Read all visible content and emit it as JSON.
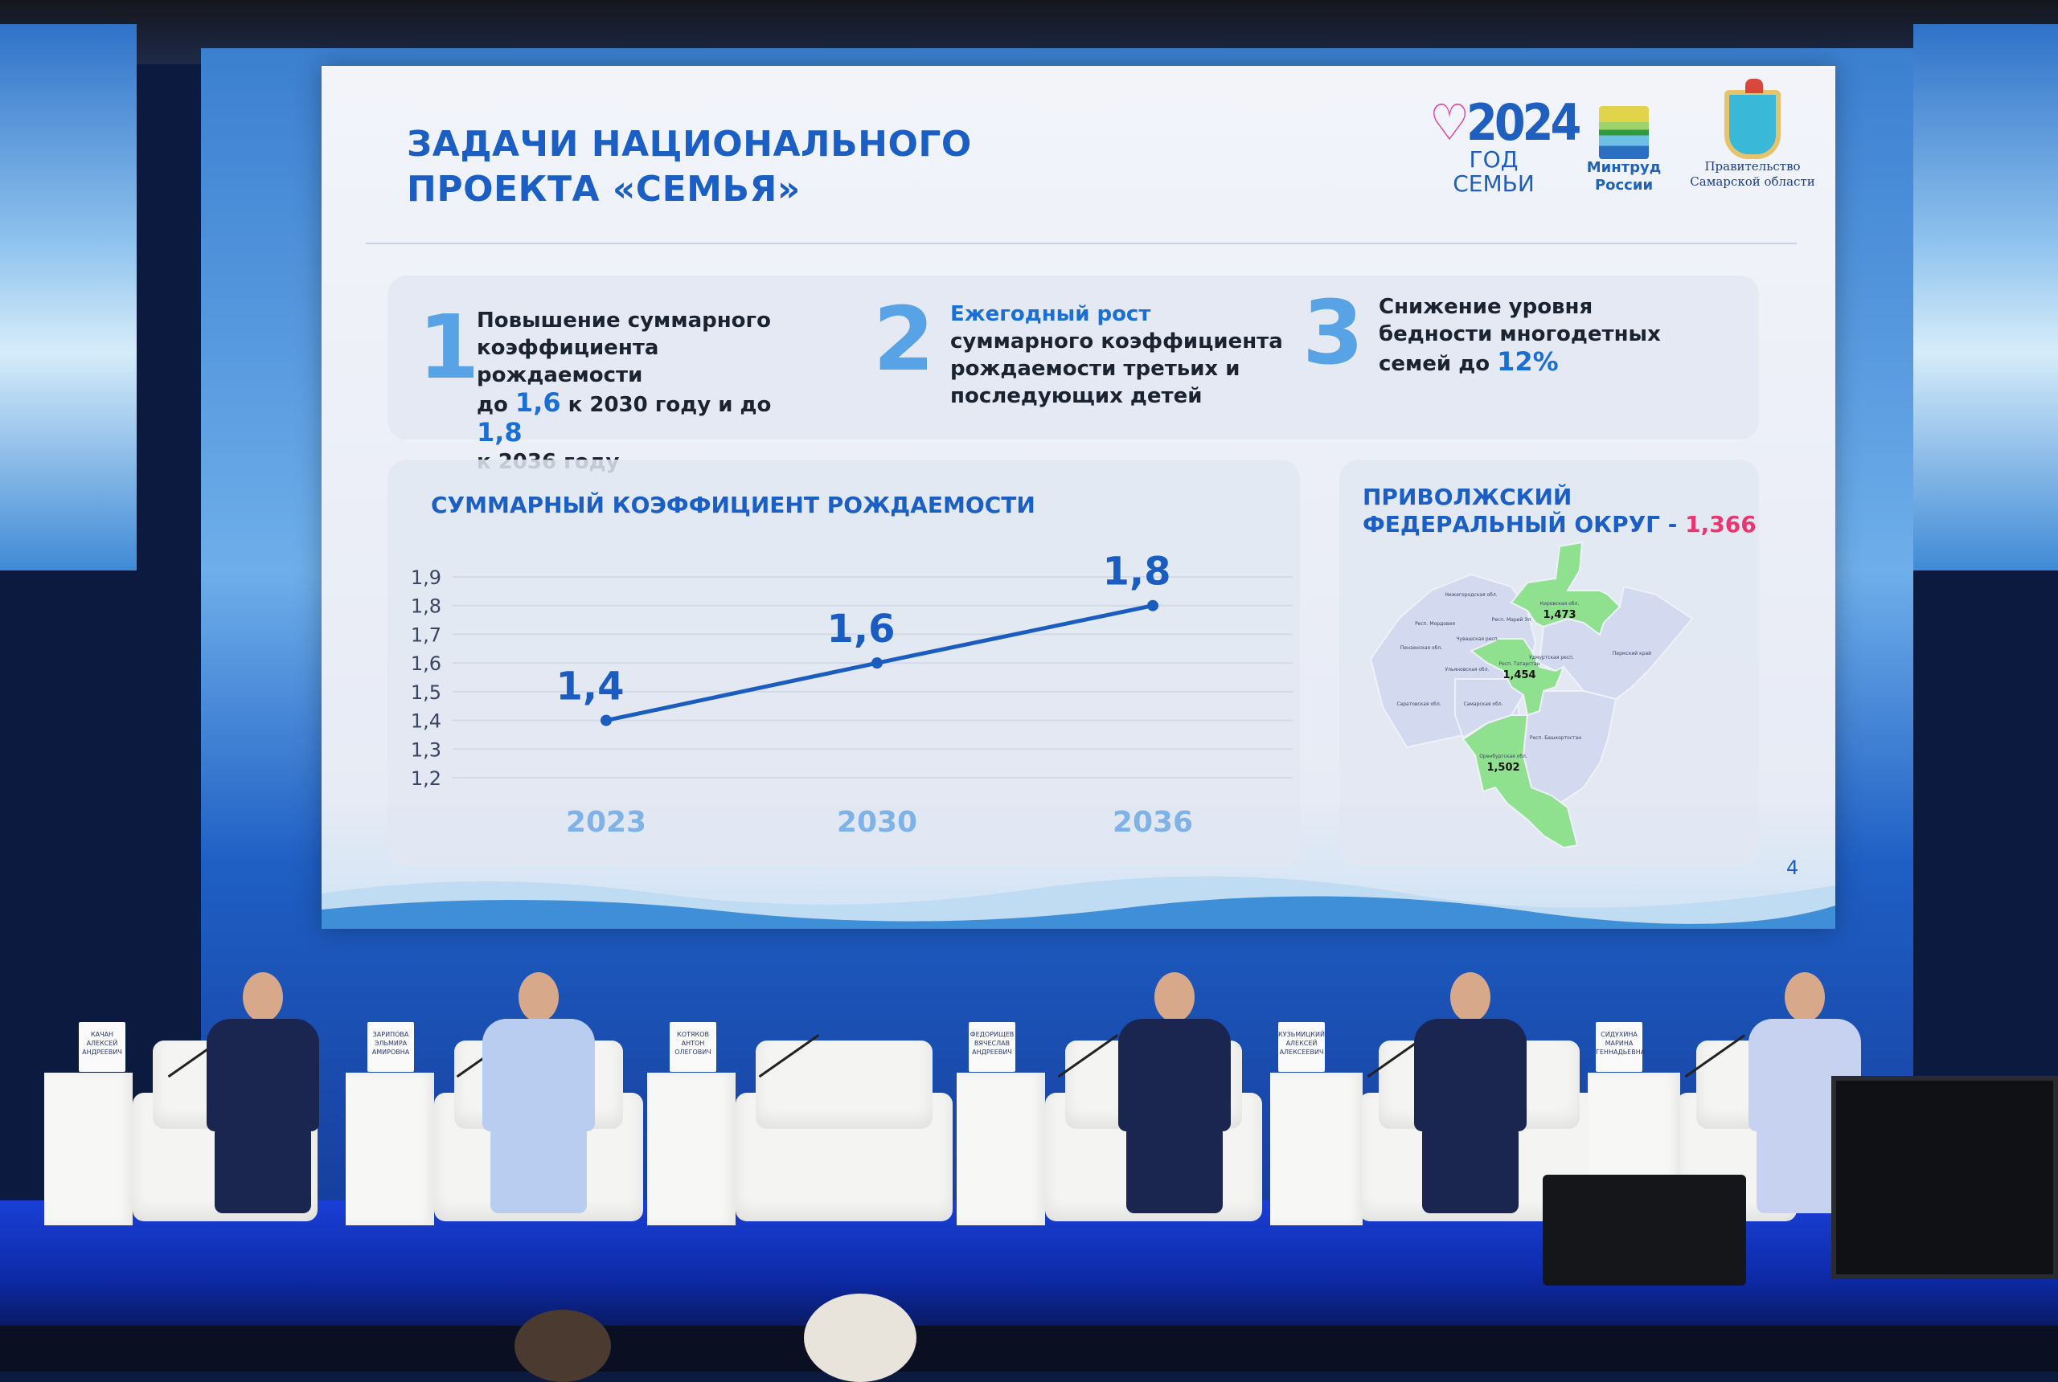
{
  "slide": {
    "title_line1": "ЗАДАЧИ НАЦИОНАЛЬНОГО",
    "title_line2": "ПРОЕКТА «СЕМЬЯ»",
    "logos": {
      "year_logo": {
        "number": "2024",
        "caption": "ГОД СЕМЬИ"
      },
      "mintrud": {
        "line1": "Минтруд",
        "line2": "России"
      },
      "samara": {
        "line1": "Правительство",
        "line2": "Самарской области"
      }
    },
    "tasks": [
      {
        "number": "1",
        "parts": [
          "Повышение суммарного",
          "коэффициента рождаемости",
          "до ",
          "1,6",
          " к 2030 году и до ",
          "1,8",
          "к 2036 году"
        ]
      },
      {
        "number": "2",
        "lead": "Ежегодный рост",
        "lines": [
          "суммарного коэффициента",
          "рождаемости третьих и",
          "последующих детей"
        ]
      },
      {
        "number": "3",
        "lines": [
          "Снижение уровня",
          "бедности многодетных"
        ],
        "last_prefix": "семей до ",
        "value": "12%"
      }
    ],
    "map": {
      "title_line1": "ПРИВОЛЖСКИЙ",
      "title_line2": "ФЕДЕРАЛЬНЫЙ ОКРУГ - ",
      "title_value": "1,366",
      "regions": [
        {
          "name": "Нижегородская обл."
        },
        {
          "name": "Респ. Мордовия"
        },
        {
          "name": "Респ. Марий Эл"
        },
        {
          "name": "Чувашская респ."
        },
        {
          "name": "Пензенская обл."
        },
        {
          "name": "Ульяновская обл."
        },
        {
          "name": "Удмуртская респ."
        },
        {
          "name": "Пермский край"
        },
        {
          "name": "Саратовская обл."
        },
        {
          "name": "Самарская обл."
        },
        {
          "name": "Респ. Башкортостан"
        },
        {
          "name": "Кировская обл.",
          "value": "1,473",
          "highlight": true
        },
        {
          "name": "Респ. Татарстан",
          "value": "1,454",
          "highlight": true
        },
        {
          "name": "Оренбургская обл.",
          "value": "1,502",
          "highlight": true
        }
      ],
      "highlight_color": "#8fe08f",
      "base_color": "#d3d9ee"
    },
    "page_number": "4"
  },
  "chart_data": {
    "type": "line",
    "title": "СУММАРНЫЙ КОЭФФИЦИЕНТ РОЖДАЕМОСТИ",
    "categories": [
      "2023",
      "2030",
      "2036"
    ],
    "values": [
      1.4,
      1.6,
      1.8
    ],
    "data_labels": [
      "1,4",
      "1,6",
      "1,8"
    ],
    "ytick_labels": [
      "1,9",
      "1,8",
      "1,7",
      "1,6",
      "1,5",
      "1,4",
      "1,3",
      "1,2"
    ],
    "yticks": [
      1.9,
      1.8,
      1.7,
      1.6,
      1.5,
      1.4,
      1.3,
      1.2
    ],
    "ylim": [
      1.2,
      1.9
    ],
    "grid": true,
    "line_color": "#1a5cc0"
  },
  "stage": {
    "nameplates": [
      {
        "lines": [
          "КАЧАН",
          "АЛЕКСЕЙ",
          "АНДРЕЕВИЧ"
        ]
      },
      {
        "lines": [
          "ЗАРИПОВА",
          "ЭЛЬМИРА",
          "АМИРОВНА"
        ]
      },
      {
        "lines": [
          "КОТЯКОВ",
          "АНТОН",
          "ОЛЕГОВИЧ"
        ]
      },
      {
        "lines": [
          "ФЕДОРИЩЕВ",
          "ВЯЧЕСЛАВ",
          "АНДРЕЕВИЧ"
        ]
      },
      {
        "lines": [
          "КУЗЬМИЦКИЙ",
          "АЛЕКСЕЙ",
          "АЛЕКСЕЕВИЧ"
        ]
      },
      {
        "lines": [
          "СИДУХИНА",
          "МАРИНА",
          "ГЕННАДЬЕВНА"
        ]
      }
    ]
  }
}
